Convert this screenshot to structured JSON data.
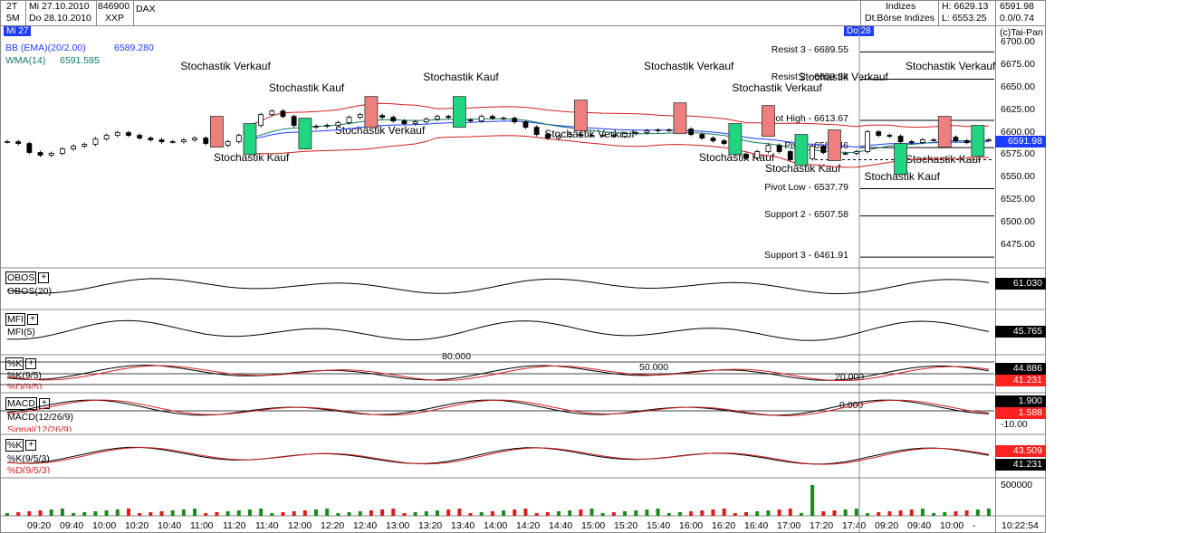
{
  "header": {
    "interval1": "2T",
    "interval2": "5M",
    "date1": "Mi 27.10.2010",
    "date2": "Do 28.10.2010",
    "wkn": "846900",
    "symbol": "DAX",
    "exchange_code": "XXP",
    "category": "Indizes",
    "exchange": "Dt.Börse Indizes",
    "high": "H: 6629.13",
    "low": "L: 6553.25",
    "last": "6591.98",
    "change": "0.0/0.74",
    "day_left": "Mi 27",
    "day_right": "Do 28",
    "copyright": "(c)Tai-Pan"
  },
  "indicators": {
    "bb_label": "BB (EMA)(20/2.00)",
    "bb_value": "6589.280",
    "wma_label": "WMA(14)",
    "wma_value": "6591.595",
    "obos_title": "OBOS",
    "obos_label": "OBOS(20)",
    "obos_value": "61.030",
    "mfi_title": "MFI",
    "mfi_label": "MFI(5)",
    "mfi_value": "45.765",
    "stoch1_title": "%K",
    "stoch1_k": "%K(9/5)",
    "stoch1_d": "%D(9/5)",
    "stoch1_k_value": "44.886",
    "stoch1_d_value": "41.231",
    "stoch1_levels": [
      "80.000",
      "50.000",
      "20.000"
    ],
    "macd_title": "MACD",
    "macd_label": "MACD(12/26/9)",
    "macd_signal": "Signal(12/26/9)",
    "macd_value": "1.900",
    "signal_value": "1.588",
    "macd_zero": "0.000",
    "macd_axis": "-10.00",
    "stoch2_title": "%K",
    "stoch2_k": "%K(9/5/3)",
    "stoch2_d": "%D(9/5/3)",
    "stoch2_d_value": "43.509",
    "stoch2_k_value": "41.231",
    "volume_axis": "500000",
    "plus": "+"
  },
  "time_axis": {
    "labels": [
      "09:20",
      "09:40",
      "10:00",
      "10:20",
      "10:40",
      "11:00",
      "11:20",
      "11:40",
      "12:00",
      "12:20",
      "12:40",
      "13:00",
      "13:20",
      "13:40",
      "14:00",
      "14:20",
      "14:40",
      "15:00",
      "15:20",
      "15:40",
      "16:00",
      "16:20",
      "16:40",
      "17:00",
      "17:20",
      "17:40",
      "09:20",
      "09:40",
      "10:00",
      "-"
    ],
    "clock": "10:22:54"
  },
  "chart_data": {
    "type": "candlestick",
    "price_axis": [
      "6700.00",
      "6675.00",
      "6650.00",
      "6625.00",
      "6600.00",
      "6575.00",
      "6550.00",
      "6525.00",
      "6500.00",
      "6475.00"
    ],
    "ylim": [
      6450,
      6705
    ],
    "last_price": "6591.98",
    "pivot_levels": [
      {
        "label": "Resist 3 - 6689.55",
        "value": 6689.55
      },
      {
        "label": "Resist 2 - 6659.34",
        "value": 6659.34
      },
      {
        "label": "Pivot High - 6613.67",
        "value": 6613.67
      },
      {
        "label": "Pivot - 6583.46",
        "value": 6583.46
      },
      {
        "label": "Pivot Low - 6537.79",
        "value": 6537.79
      },
      {
        "label": "Support 2 - 6507.58",
        "value": 6507.58
      },
      {
        "label": "Support 3 - 6461.91",
        "value": 6461.91
      }
    ],
    "signals": [
      {
        "text": "Stochastik Verkauf",
        "type": "sell",
        "price": 6600
      },
      {
        "text": "Stochastik Kauf",
        "type": "buy",
        "price": 6592
      },
      {
        "text": "Stochastik Kauf",
        "type": "buy",
        "price": 6598
      },
      {
        "text": "Stochastik Verkauf",
        "type": "sell",
        "price": 6622
      },
      {
        "text": "Stochastik Kauf",
        "type": "buy",
        "price": 6622
      },
      {
        "text": "Stochastik Verkauf",
        "type": "sell",
        "price": 6618
      },
      {
        "text": "Stochastik Verkauf",
        "type": "sell",
        "price": 6615
      },
      {
        "text": "Stochastik Kauf",
        "type": "buy",
        "price": 6592
      },
      {
        "text": "Stochastik Verkauf",
        "type": "sell",
        "price": 6612
      },
      {
        "text": "Stochastik Kauf",
        "type": "buy",
        "price": 6580
      },
      {
        "text": "Stochastik Verkauf",
        "type": "sell",
        "price": 6585
      },
      {
        "text": "Stochastik Kauf",
        "type": "buy",
        "price": 6570
      },
      {
        "text": "Stochastik Verkauf",
        "type": "sell",
        "price": 6600
      },
      {
        "text": "Stochastik Kauf",
        "type": "buy",
        "price": 6590
      }
    ],
    "annotations": [
      {
        "text": "Stochastik Verkauf"
      },
      {
        "text": "Stochastik Kauf"
      },
      {
        "text": "Stochastik Verkauf"
      },
      {
        "text": "Stochastik Kauf"
      },
      {
        "text": "Stochastik Verkauf"
      },
      {
        "text": "Stochastik Verkauf"
      },
      {
        "text": "Stochastik Kauf"
      },
      {
        "text": "Stochastik Verkauf"
      },
      {
        "text": "Stochastik Kauf"
      },
      {
        "text": "Stochastik Verkauf"
      },
      {
        "text": "Stochastik Verkauf"
      },
      {
        "text": "Stochastik Kauf"
      },
      {
        "text": "Stochastik Verkauf"
      },
      {
        "text": "Stochastik Kauf"
      }
    ],
    "closes": [
      6590,
      6588,
      6578,
      6575,
      6577,
      6582,
      6585,
      6587,
      6593,
      6597,
      6600,
      6597,
      6594,
      6592,
      6590,
      6590,
      6592,
      6594,
      6588,
      6586,
      6590,
      6597,
      6608,
      6620,
      6624,
      6618,
      6608,
      6606,
      6607,
      6608,
      6611,
      6617,
      6620,
      6619,
      6617,
      6613,
      6610,
      6612,
      6615,
      6618,
      6617,
      6614,
      6613,
      6618,
      6616,
      6616,
      6612,
      6606,
      6598,
      6594,
      6596,
      6598,
      6597,
      6597,
      6597,
      6596,
      6599,
      6600,
      6602,
      6603,
      6603,
      6604,
      6598,
      6594,
      6591,
      6588,
      6576,
      6572,
      6579,
      6586,
      6579,
      6570,
      6571,
      6585,
      6578,
      6577,
      6577,
      6579,
      6601,
      6597,
      6596,
      6590,
      6589,
      6592,
      6592,
      6595,
      6591,
      6589,
      6592,
      6592
    ],
    "volume_colors": [
      "red",
      "green"
    ]
  },
  "colors": {
    "up": "#1fd67f",
    "down": "#ee7f7f",
    "boll": "#d21f1f",
    "ema": "#1e3cff",
    "wma": "#0d7a66",
    "tag": "#1e3cff",
    "value_black": "#000000",
    "value_red": "#ff2020"
  }
}
